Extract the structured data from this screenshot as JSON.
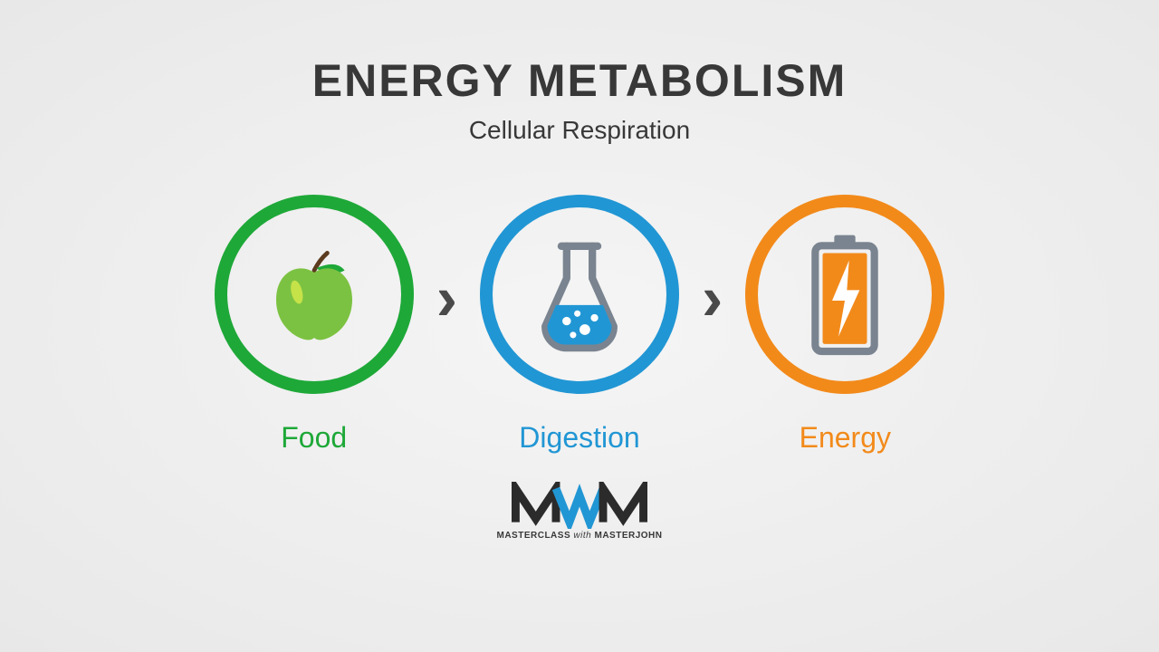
{
  "title": {
    "text": "ENERGY METABOLISM",
    "fontsize": 50,
    "color": "#383838"
  },
  "subtitle": {
    "text": "Cellular Respiration",
    "fontsize": 28,
    "color": "#383838"
  },
  "background": {
    "center": "#f5f5f5",
    "edge": "#e8e8e8"
  },
  "flow": {
    "circle_size": 220,
    "circle_border_width": 14,
    "label_fontsize": 32,
    "arrow_color": "#4a4a4a",
    "arrow_fontsize": 70,
    "steps": [
      {
        "id": "food",
        "label": "Food",
        "color": "#1ea838",
        "icon": "apple"
      },
      {
        "id": "digestion",
        "label": "Digestion",
        "color": "#2196d4",
        "icon": "flask"
      },
      {
        "id": "energy",
        "label": "Energy",
        "color": "#f28a1a",
        "icon": "battery"
      }
    ]
  },
  "icons": {
    "apple": {
      "body_color": "#7cc242",
      "leaf_color": "#1ea838",
      "stem_color": "#5b3a1e",
      "highlight_color": "#d4e84a"
    },
    "flask": {
      "outline_color": "#7a8490",
      "liquid_color": "#2196d4",
      "bubble_color": "#ffffff"
    },
    "battery": {
      "outline_color": "#7a8490",
      "fill_color": "#f28a1a",
      "bolt_color": "#ffffff"
    }
  },
  "logo": {
    "line1_a": "MASTERCLASS",
    "line1_with": "with",
    "line1_b": "MASTERJOHN",
    "dark": "#2b2b2b",
    "accent": "#2196d4"
  }
}
